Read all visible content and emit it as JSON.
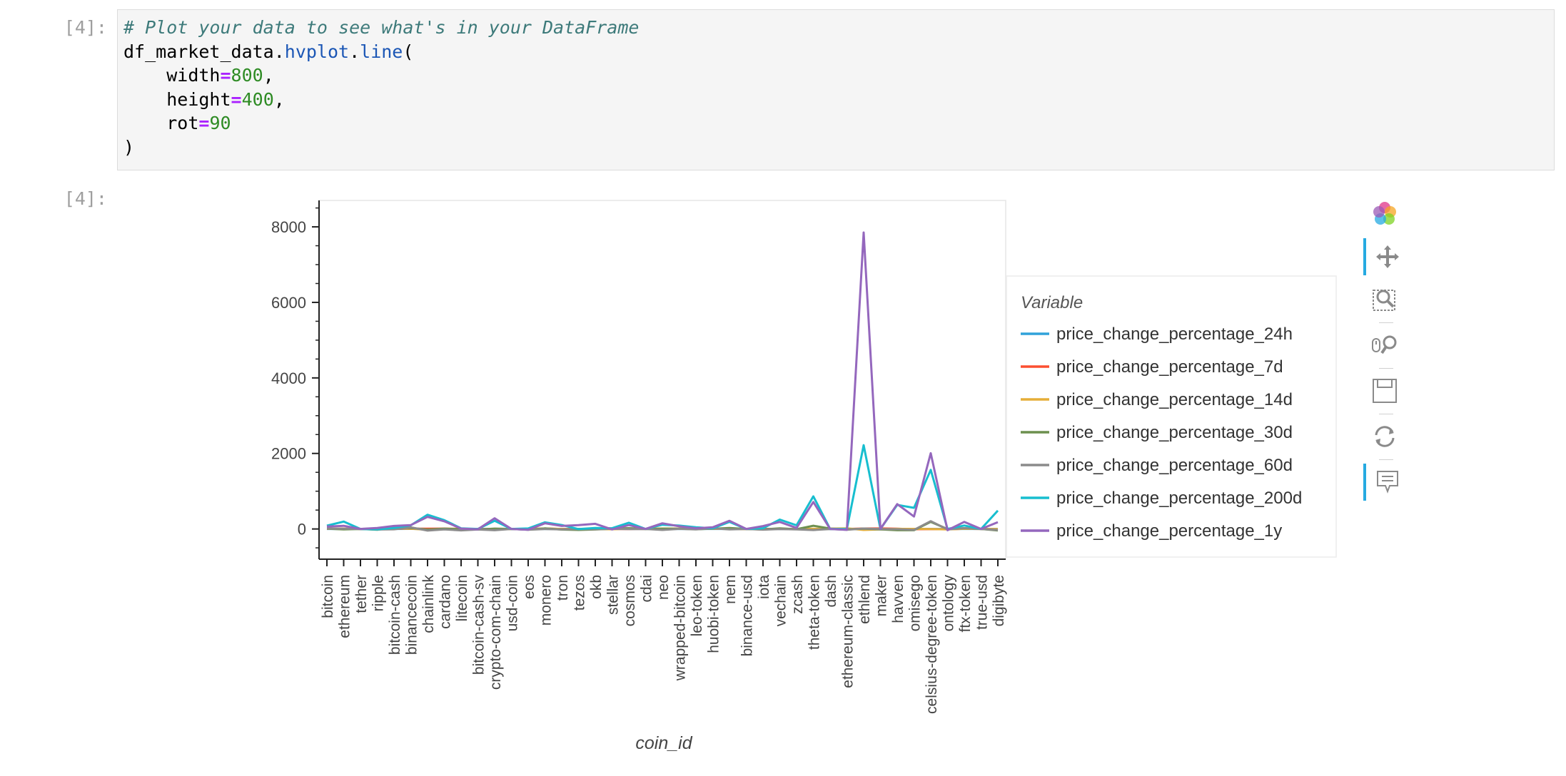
{
  "input_prompt": "[4]:",
  "output_prompt": "[4]:",
  "code": {
    "comment": "# Plot your data to see what's in your DataFrame",
    "obj": "df_market_data",
    "attr1": "hvplot",
    "attr2": "line",
    "arg_width": "width",
    "val_width": "800",
    "arg_height": "height",
    "val_height": "400",
    "arg_rot": "rot",
    "val_rot": "90"
  },
  "toolbar": {
    "tools": [
      "bokeh-logo-icon",
      "pan-icon",
      "box-zoom-icon",
      "wheel-zoom-icon",
      "save-icon",
      "reset-icon",
      "hover-icon"
    ]
  },
  "chart_data": {
    "type": "line",
    "xlabel": "coin_id",
    "ylabel": "",
    "ylim": [
      -800,
      8700
    ],
    "yticks": [
      0,
      2000,
      4000,
      6000,
      8000
    ],
    "grid": false,
    "legend_title": "Variable",
    "legend_position": "right",
    "categories": [
      "bitcoin",
      "ethereum",
      "tether",
      "ripple",
      "bitcoin-cash",
      "binancecoin",
      "chainlink",
      "cardano",
      "litecoin",
      "bitcoin-cash-sv",
      "crypto-com-chain",
      "usd-coin",
      "eos",
      "monero",
      "tron",
      "tezos",
      "okb",
      "stellar",
      "cosmos",
      "cdai",
      "neo",
      "wrapped-bitcoin",
      "leo-token",
      "huobi-token",
      "nem",
      "binance-usd",
      "iota",
      "vechain",
      "zcash",
      "theta-token",
      "dash",
      "ethereum-classic",
      "ethlend",
      "maker",
      "havven",
      "omisego",
      "celsius-degree-token",
      "ontology",
      "ftx-token",
      "true-usd",
      "digibyte"
    ],
    "series": [
      {
        "name": "price_change_percentage_24h",
        "color": "#30a2da",
        "values": [
          1,
          0,
          0,
          0,
          1,
          2,
          -1,
          0,
          0,
          0,
          0,
          0,
          0,
          1,
          0,
          0,
          0,
          0,
          1,
          0,
          0,
          0,
          0,
          0,
          0,
          0,
          0,
          0,
          0,
          0,
          0,
          0,
          0,
          0,
          1,
          0,
          0,
          0,
          0,
          0,
          0
        ]
      },
      {
        "name": "price_change_percentage_7d",
        "color": "#fc4f30",
        "values": [
          7,
          11,
          0,
          -3,
          7,
          6,
          7,
          10,
          3,
          -3,
          -3,
          0,
          -1,
          12,
          0,
          -3,
          5,
          0,
          -2,
          0,
          10,
          7,
          0,
          9,
          4,
          0,
          -2,
          3,
          -2,
          -2,
          5,
          1,
          12,
          14,
          7,
          -7,
          -4,
          -6,
          4,
          0,
          -6
        ]
      },
      {
        "name": "price_change_percentage_14d",
        "color": "#e5ae38",
        "values": [
          7,
          4,
          0,
          -5,
          18,
          9,
          -22,
          -2,
          10,
          -14,
          -15,
          0,
          1,
          12,
          0,
          -17,
          3,
          -8,
          13,
          0,
          12,
          7,
          4,
          9,
          -3,
          0,
          -15,
          9,
          -3,
          5,
          11,
          15,
          -25,
          -12,
          2,
          2,
          -1,
          -12,
          5,
          0,
          -2
        ]
      },
      {
        "name": "price_change_percentage_30d",
        "color": "#6d904f",
        "values": [
          8,
          -11,
          0,
          -20,
          33,
          26,
          -17,
          9,
          -6,
          -16,
          11,
          0,
          -19,
          15,
          -17,
          -25,
          -14,
          7,
          21,
          0,
          9,
          8,
          -6,
          8,
          26,
          0,
          -13,
          16,
          -7,
          85,
          10,
          -12,
          8,
          -10,
          -33,
          -34,
          188,
          -2,
          20,
          0,
          -40
        ]
      },
      {
        "name": "price_change_percentage_60d",
        "color": "#8b8b8b",
        "values": [
          12,
          9,
          0,
          -15,
          -8,
          43,
          -42,
          -13,
          -37,
          -14,
          -33,
          0,
          -21,
          -2,
          -11,
          -5,
          -7,
          4,
          -3,
          0,
          -25,
          2,
          -12,
          15,
          -10,
          0,
          -19,
          -3,
          -11,
          -27,
          -3,
          -22,
          12,
          -3,
          -7,
          -24,
          206,
          -12,
          22,
          0,
          -27
        ]
      },
      {
        "name": "price_change_percentage_200d",
        "color": "#17becf",
        "values": [
          88,
          196,
          0,
          -12,
          30,
          98,
          376,
          233,
          18,
          0,
          218,
          0,
          14,
          176,
          105,
          -3,
          25,
          20,
          166,
          0,
          113,
          90,
          45,
          18,
          188,
          0,
          20,
          248,
          98,
          864,
          0,
          0,
          2218,
          0,
          638,
          560,
          1565,
          0,
          91,
          0,
          487
        ]
      },
      {
        "name": "price_change_percentage_1y",
        "color": "#9467bd",
        "values": [
          64,
          83,
          0,
          28,
          80,
          103,
          320,
          203,
          10,
          -9,
          285,
          0,
          -20,
          150,
          80,
          100,
          137,
          -12,
          102,
          0,
          150,
          70,
          18,
          45,
          217,
          0,
          76,
          185,
          28,
          714,
          0,
          -23,
          7850,
          3,
          658,
          330,
          2006,
          -33,
          188,
          0,
          181
        ]
      }
    ]
  }
}
